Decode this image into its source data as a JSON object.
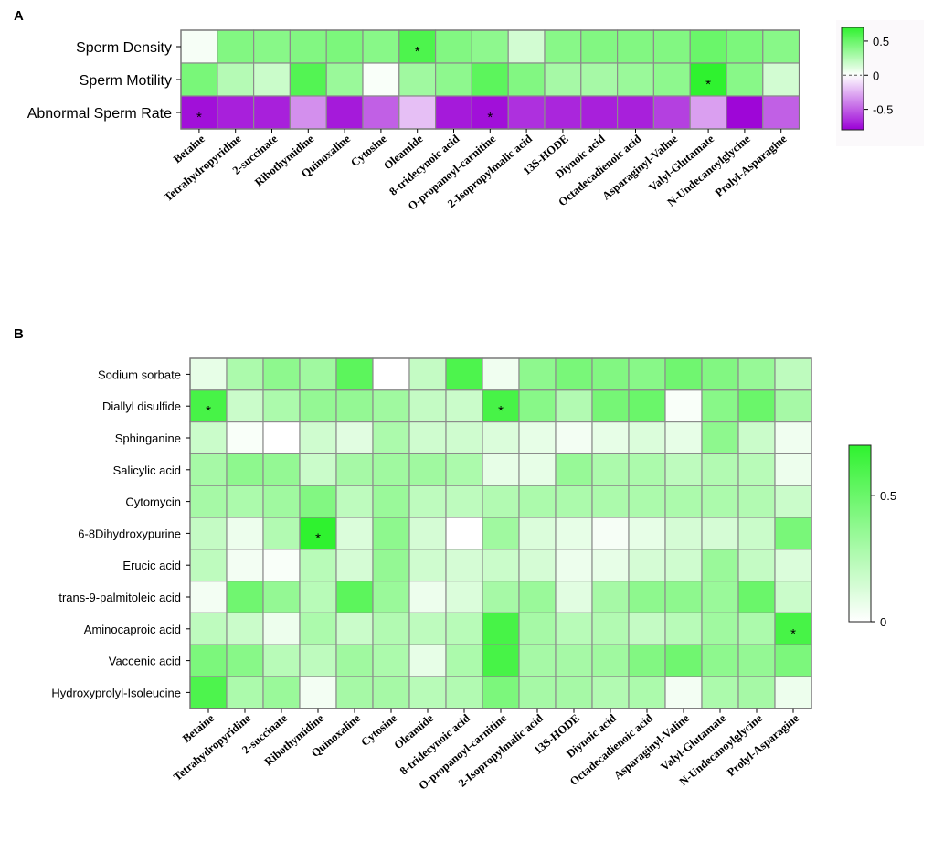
{
  "chart_data": [
    {
      "panel": "A",
      "type": "heatmap",
      "rows": [
        "Sperm Density",
        "Sperm Motility",
        "Abnormal Sperm Rate"
      ],
      "columns": [
        "Betaine",
        "Tetrahydropyridine",
        "2-succinate",
        "Ribothymidine",
        "Quinoxaline",
        "Cytosine",
        "Oleamide",
        "8-tridecynoic acid",
        "O-propanoyl-carnitine",
        "2-Isopropylmalic acid",
        "13S-HODE",
        "Diynoic acid",
        "Octadecadienoic acid",
        "Asparaginyl-Valine",
        "Valyl-Glutamate",
        "N-Undecanoylglycine",
        "Prolyl-Asparagine"
      ],
      "values": [
        [
          0.03,
          0.42,
          0.4,
          0.42,
          0.44,
          0.4,
          0.6,
          0.42,
          0.38,
          0.15,
          0.4,
          0.42,
          0.42,
          0.42,
          0.5,
          0.44,
          0.4
        ],
        [
          0.45,
          0.25,
          0.18,
          0.58,
          0.34,
          0.02,
          0.32,
          0.38,
          0.55,
          0.42,
          0.3,
          0.3,
          0.34,
          0.38,
          0.74,
          0.4,
          0.15
        ],
        [
          -0.75,
          -0.7,
          -0.7,
          -0.35,
          -0.72,
          -0.5,
          -0.2,
          -0.72,
          -0.75,
          -0.65,
          -0.68,
          -0.7,
          -0.7,
          -0.6,
          -0.3,
          -0.78,
          -0.5
        ]
      ],
      "significant": [
        [
          0,
          6
        ],
        [
          1,
          14
        ],
        [
          2,
          0
        ],
        [
          2,
          8
        ]
      ],
      "significance_marker": "*",
      "colorbar": {
        "ticks": [
          0.5,
          0,
          -0.5
        ],
        "tick_labels": [
          "0.5",
          "0",
          "-0.5"
        ],
        "range": [
          -0.8,
          0.7
        ]
      },
      "colors": {
        "positive": "#2ff22f",
        "zero": "#ffffff",
        "negative": "#9b00d6"
      }
    },
    {
      "panel": "B",
      "type": "heatmap",
      "rows": [
        "Sodium sorbate",
        "Diallyl disulfide",
        "Sphinganine",
        "Salicylic acid",
        "Cytomycin",
        "6-8Dihydroxypurine",
        "Erucic acid",
        "trans-9-palmitoleic acid",
        "Aminocaproic acid",
        "Vaccenic acid",
        "Hydroxyprolyl-Isoleucine"
      ],
      "columns": [
        "Betaine",
        "Tetrahydropyridine",
        "2-succinate",
        "Ribothymidine",
        "Quinoxaline",
        "Cytosine",
        "Oleamide",
        "8-tridecynoic acid",
        "O-propanoyl-carnitine",
        "2-Isopropylmalic acid",
        "13S-HODE",
        "Diynoic acid",
        "Octadecadienoic acid",
        "Asparaginyl-Valine",
        "Valyl-Glutamate",
        "N-Undecanoylglycine",
        "Prolyl-Asparagine"
      ],
      "values": [
        [
          0.08,
          0.28,
          0.38,
          0.32,
          0.55,
          0.0,
          0.2,
          0.6,
          0.05,
          0.38,
          0.45,
          0.42,
          0.4,
          0.48,
          0.42,
          0.35,
          0.22
        ],
        [
          0.62,
          0.18,
          0.28,
          0.36,
          0.36,
          0.32,
          0.2,
          0.18,
          0.62,
          0.4,
          0.26,
          0.46,
          0.5,
          0.02,
          0.4,
          0.5,
          0.3
        ],
        [
          0.18,
          0.02,
          0.0,
          0.16,
          0.1,
          0.28,
          0.16,
          0.16,
          0.12,
          0.08,
          0.04,
          0.08,
          0.12,
          0.08,
          0.38,
          0.18,
          0.05
        ],
        [
          0.3,
          0.38,
          0.36,
          0.18,
          0.3,
          0.32,
          0.32,
          0.28,
          0.08,
          0.08,
          0.35,
          0.28,
          0.28,
          0.22,
          0.26,
          0.24,
          0.06
        ],
        [
          0.3,
          0.28,
          0.32,
          0.42,
          0.22,
          0.34,
          0.22,
          0.22,
          0.26,
          0.28,
          0.28,
          0.28,
          0.28,
          0.28,
          0.28,
          0.26,
          0.18
        ],
        [
          0.2,
          0.06,
          0.26,
          0.72,
          0.12,
          0.38,
          0.14,
          0.0,
          0.32,
          0.12,
          0.08,
          0.03,
          0.08,
          0.14,
          0.14,
          0.18,
          0.45
        ],
        [
          0.22,
          0.04,
          0.02,
          0.24,
          0.14,
          0.36,
          0.16,
          0.14,
          0.18,
          0.14,
          0.06,
          0.08,
          0.14,
          0.16,
          0.34,
          0.2,
          0.12
        ],
        [
          0.04,
          0.48,
          0.36,
          0.24,
          0.55,
          0.34,
          0.06,
          0.12,
          0.3,
          0.34,
          0.1,
          0.3,
          0.38,
          0.38,
          0.34,
          0.5,
          0.18
        ],
        [
          0.22,
          0.18,
          0.06,
          0.28,
          0.18,
          0.26,
          0.22,
          0.24,
          0.62,
          0.3,
          0.24,
          0.26,
          0.2,
          0.24,
          0.32,
          0.28,
          0.62
        ],
        [
          0.44,
          0.4,
          0.24,
          0.22,
          0.32,
          0.28,
          0.08,
          0.28,
          0.62,
          0.3,
          0.3,
          0.32,
          0.42,
          0.48,
          0.38,
          0.36,
          0.44
        ],
        [
          0.6,
          0.28,
          0.34,
          0.04,
          0.3,
          0.3,
          0.24,
          0.26,
          0.44,
          0.3,
          0.3,
          0.26,
          0.28,
          0.04,
          0.28,
          0.3,
          0.06
        ]
      ],
      "significant": [
        [
          1,
          0
        ],
        [
          1,
          8
        ],
        [
          5,
          3
        ],
        [
          8,
          16
        ]
      ],
      "significance_marker": "*",
      "colorbar": {
        "ticks": [
          0.5,
          0
        ],
        "tick_labels": [
          "0.5",
          "0"
        ],
        "range": [
          0,
          0.7
        ]
      },
      "colors": {
        "positive": "#2ff22f",
        "zero": "#ffffff"
      }
    }
  ]
}
